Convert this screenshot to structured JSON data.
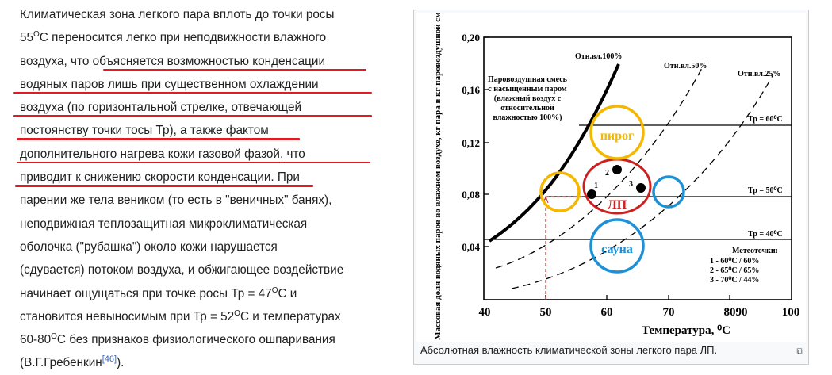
{
  "article": {
    "lines": [
      "Климатическая зона легкого пара вплоть до точки росы",
      "переносится легко при неподвижности влажного",
      "воздуха, что объясняется возможностью конденсации",
      "водяных паров лишь при существенном охлаждении",
      "воздуха (по горизонтальной стрелке, отвечающей",
      "постоянству точки тосы Тр), а также фактом",
      "дополнительного нагрева кожи газовой фазой, что",
      "приводит к снижению скорости конденсации. При",
      "парении же тела веником (то есть в \"веничных\" банях),",
      "неподвижная теплозащитная микроклиматическая",
      "оболочка (\"рубашка\") около кожи нарушается",
      "(сдувается) потоком воздуха, и обжигающее воздействие",
      "начинает ощущаться при точке росы Тр = 47",
      "становится невыносимым при Тр = 52",
      "60-80",
      "(В.Г.Гребенкин"
    ],
    "line2_prefix": "55",
    "line2_sup": "O",
    "line2_rest": "C переносится легко при неподвижности влажного",
    "line13_sup": "O",
    "line13_rest": "C и",
    "line14_sup": "O",
    "line14_mid": "C и температурах",
    "line15_sup": "O",
    "line15_rest": "C без признаков физиологического ошпаривания",
    "citation": "[46]",
    "line16_end": ")."
  },
  "figure": {
    "caption": "Абсолютная влажность климатической зоны легкого пара ЛП.",
    "magnify_icon": "⧉",
    "y_axis_label": "Массовая доля водяных паров во влажном воздухе, кг пара в кг паровоздушной смеси",
    "x_axis_label": "Температура, ⁰С",
    "y_ticks": [
      "0,20",
      "0,16",
      "0,12",
      "0,08",
      "0,04"
    ],
    "x_ticks": [
      "40",
      "50",
      "60",
      "70",
      "80",
      "90",
      "100"
    ],
    "curve_labels": [
      "Отн.вл.100%",
      "Отн.вл.50%",
      "Отн.вл.25%"
    ],
    "annotation": [
      "Паровоздушная смесь",
      "с насыщенным паром",
      "(влажный воздух с",
      "относительной",
      "влажностью 100%)"
    ],
    "dewpoint_labels": [
      "Тр = 60⁰С",
      "Тр = 50⁰С",
      "Тр = 40⁰С"
    ],
    "zone_labels": [
      "пирог",
      "ЛП",
      "сауна"
    ],
    "point_labels": [
      "1",
      "2",
      "3"
    ],
    "legend_title": "Метеоточки:",
    "legend_items": [
      "1 -  60⁰С / 60%",
      "2 -  65⁰С / 65%",
      "3 -  70⁰С / 44%"
    ],
    "colors": {
      "pirog": "#f5b800",
      "sauna": "#1e90d6",
      "lp": "#cc1f1f",
      "underline": "#e01b24"
    }
  }
}
